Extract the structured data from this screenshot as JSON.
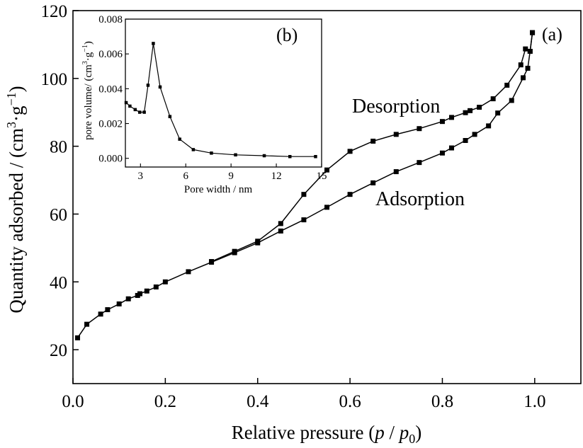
{
  "chart_data": [
    {
      "type": "line",
      "panel_label": "(a)",
      "xlabel": "Relative pressure (p / p0)",
      "xlabel_parts": {
        "text": "Relative pressure (",
        "var_p": "p",
        "slash": " / ",
        "var_p0": "p",
        "sub0": "0",
        "close": ")"
      },
      "ylabel": "Quantity adsorbed / (cm3·g−1)",
      "ylabel_parts": {
        "text": "Quantity adsorbed / (cm",
        "sup3": "3",
        "mid": "·g",
        "supneg1": "−1",
        "close": ")"
      },
      "xlim": [
        0.0,
        1.1
      ],
      "ylim": [
        10,
        120
      ],
      "x_ticks": [
        0.0,
        0.2,
        0.4,
        0.6,
        0.8,
        1.0
      ],
      "x_tick_labels": [
        "0.0",
        "0.2",
        "0.4",
        "0.6",
        "0.8",
        "1.0"
      ],
      "y_ticks": [
        20,
        40,
        60,
        80,
        100,
        120
      ],
      "y_tick_labels": [
        "20",
        "40",
        "60",
        "80",
        "100",
        "120"
      ],
      "annotations": [
        "Desorption",
        "Adsorption"
      ],
      "series": [
        {
          "name": "Adsorption",
          "x": [
            0.01,
            0.03,
            0.06,
            0.075,
            0.1,
            0.12,
            0.14,
            0.145,
            0.16,
            0.18,
            0.2,
            0.25,
            0.3,
            0.35,
            0.4,
            0.45,
            0.5,
            0.55,
            0.6,
            0.65,
            0.7,
            0.75,
            0.8,
            0.82,
            0.85,
            0.87,
            0.9,
            0.92,
            0.95,
            0.975,
            0.985,
            0.99,
            0.995
          ],
          "y": [
            23.5,
            27.5,
            30.5,
            31.8,
            33.5,
            35.0,
            36.0,
            36.5,
            37.3,
            38.5,
            40.0,
            43.0,
            45.8,
            48.6,
            51.5,
            55.0,
            58.3,
            62.0,
            65.8,
            69.2,
            72.5,
            75.2,
            78.0,
            79.5,
            81.7,
            83.5,
            86.0,
            89.8,
            93.5,
            100.2,
            103.0,
            108.0,
            113.5
          ]
        },
        {
          "name": "Desorption",
          "x": [
            0.995,
            0.99,
            0.98,
            0.97,
            0.94,
            0.91,
            0.88,
            0.86,
            0.85,
            0.82,
            0.8,
            0.75,
            0.7,
            0.65,
            0.6,
            0.55,
            0.5,
            0.45,
            0.4,
            0.35,
            0.3
          ],
          "y": [
            113.5,
            108.0,
            108.7,
            104.0,
            98.0,
            94.0,
            91.5,
            90.5,
            89.9,
            88.5,
            87.3,
            85.2,
            83.5,
            81.5,
            78.5,
            73.0,
            65.8,
            57.2,
            52.0,
            49.0,
            46.0
          ]
        }
      ]
    },
    {
      "type": "line",
      "panel_label": "(b)",
      "xlabel": "Pore width / nm",
      "ylabel": "pore volume/ (cm3·g−1)",
      "ylabel_parts": {
        "text": "pore volume/ (cm",
        "sup3": "3",
        "mid": "·g",
        "supneg1": "−1",
        "close": ")"
      },
      "xlim": [
        2,
        15
      ],
      "ylim": [
        -0.0005,
        0.008
      ],
      "x_ticks": [
        3,
        6,
        9,
        12,
        15
      ],
      "x_tick_labels": [
        "3",
        "6",
        "9",
        "12",
        "15"
      ],
      "y_ticks": [
        0.0,
        0.002,
        0.004,
        0.006,
        0.008
      ],
      "y_tick_labels": [
        "0.000",
        "0.002",
        "0.004",
        "0.006",
        "0.008"
      ],
      "series": [
        {
          "x": [
            2.05,
            2.3,
            2.65,
            2.95,
            3.25,
            3.5,
            3.85,
            4.3,
            4.95,
            5.6,
            6.5,
            7.7,
            9.3,
            11.2,
            12.9,
            14.6
          ],
          "y": [
            0.0032,
            0.003,
            0.0028,
            0.00265,
            0.00265,
            0.0042,
            0.0066,
            0.0041,
            0.0024,
            0.0011,
            0.0005,
            0.0003,
            0.0002,
            0.00015,
            0.0001,
            0.0001
          ]
        }
      ]
    }
  ]
}
